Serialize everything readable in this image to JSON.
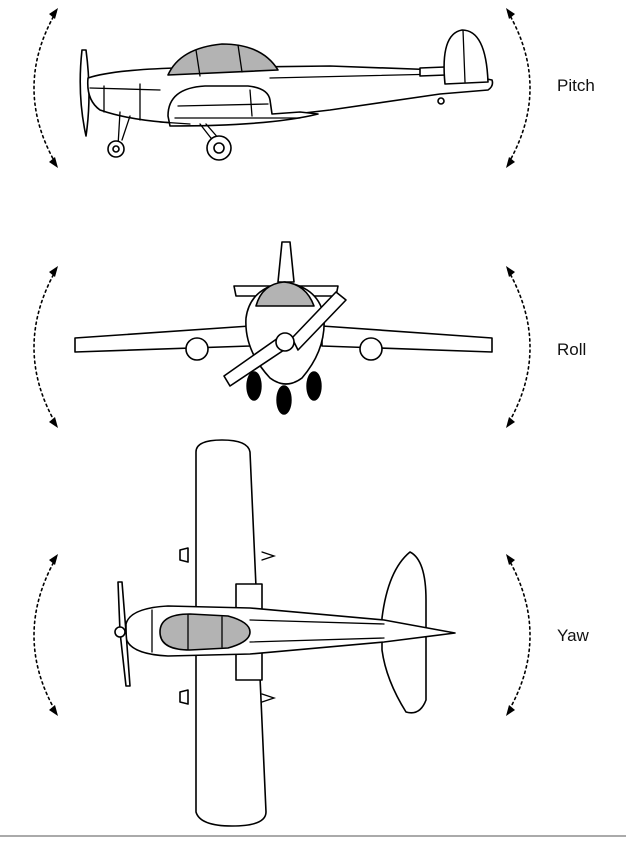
{
  "labels": {
    "pitch": "Pitch",
    "roll": "Roll",
    "yaw": "Yaw"
  },
  "colors": {
    "line": "#000000",
    "glass": "#b3b3b3",
    "background": "#ffffff"
  }
}
